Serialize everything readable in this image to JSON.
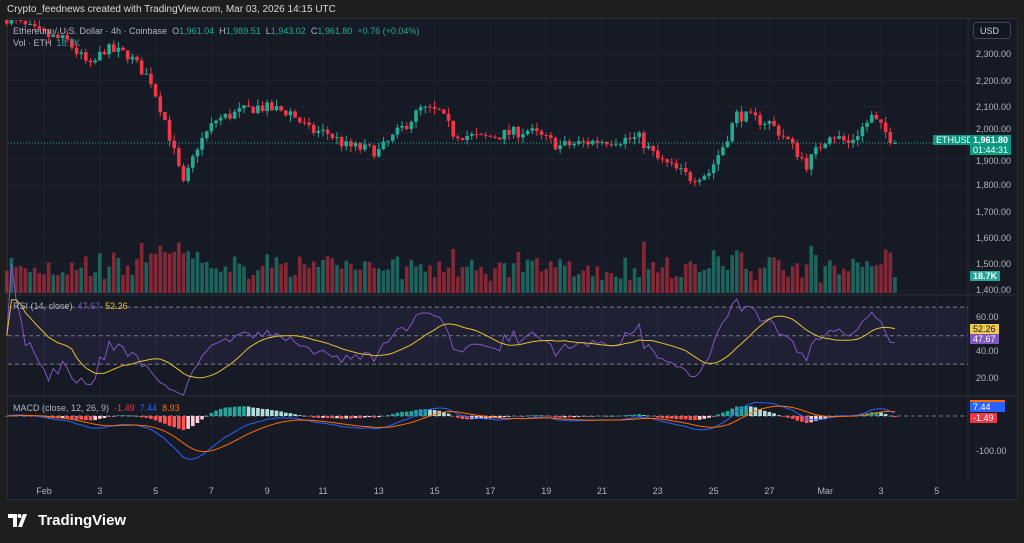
{
  "caption": "Crypto_feednews created with TradingView.com, Mar 03, 2026 14:15 UTC",
  "legend": {
    "symbol": "Ethereum / U.S. Dollar · 4h · Coinbase",
    "o_label": "O",
    "o": "1,961.04",
    "h_label": "H",
    "h": "1,989.51",
    "l_label": "L",
    "l": "1,943.02",
    "c_label": "C",
    "c": "1,961.80",
    "change": "+0.76 (+0.04%)",
    "vol_label": "Vol · ETH",
    "vol": "18.7K"
  },
  "currency_button": "USD",
  "price_axis": [
    "2,300.00",
    "2,200.00",
    "2,100.00",
    "2,000.00",
    "1,900.00",
    "1,800.00",
    "1,700.00",
    "1,600.00",
    "1,500.00",
    "1,400.00"
  ],
  "last_price": {
    "symbol": "ETHUSD",
    "price": "1,961.80",
    "countdown": "01:44:31",
    "volume": "18.7K"
  },
  "rsi": {
    "label": "RSI (14, close)",
    "value": "47.67",
    "ma": "52.26",
    "axis": [
      "60.00",
      "40.00",
      "20.00"
    ]
  },
  "macd": {
    "label": "MACD (close, 12, 26, 9)",
    "hist": "-1.49",
    "macd": "7.44",
    "signal": "8.93",
    "axis": [
      "-100.00"
    ]
  },
  "time_axis": [
    "Feb",
    "3",
    "5",
    "7",
    "9",
    "11",
    "13",
    "15",
    "17",
    "19",
    "21",
    "23",
    "25",
    "27",
    "Mar",
    "3",
    "5"
  ],
  "footer_brand": "TradingView",
  "colors": {
    "up": "#22ab94",
    "down": "#f23645",
    "rsi": "#7e57c2",
    "rsi_ma": "#e6c229",
    "macd": "#2962ff",
    "signal": "#ff6d00",
    "background": "#161a25"
  },
  "chart_data": {
    "type": "candlestick",
    "interval": "4h",
    "price_range": [
      1400,
      2400
    ],
    "close_path": [
      [
        "2026-01-30T16:00",
        2440
      ],
      [
        "2026-01-31T20:00",
        2380
      ],
      [
        "2026-02-01T20:00",
        2350
      ],
      [
        "2026-02-02T16:00",
        2250
      ],
      [
        "2026-02-03T04:00",
        2320
      ],
      [
        "2026-02-04T00:00",
        2300
      ],
      [
        "2026-02-04T20:00",
        2200
      ],
      [
        "2026-02-05T08:00",
        2050
      ],
      [
        "2026-02-06T00:00",
        1800
      ],
      [
        "2026-02-06T12:00",
        1950
      ],
      [
        "2026-02-07T04:00",
        2050
      ],
      [
        "2026-02-08T00:00",
        2080
      ],
      [
        "2026-02-08T16:00",
        2100
      ],
      [
        "2026-02-09T20:00",
        2080
      ],
      [
        "2026-02-10T12:00",
        2010
      ],
      [
        "2026-02-11T04:00",
        2000
      ],
      [
        "2026-02-11T20:00",
        1950
      ],
      [
        "2026-02-13T00:00",
        1930
      ],
      [
        "2026-02-13T16:00",
        2000
      ],
      [
        "2026-02-14T12:00",
        2090
      ],
      [
        "2026-02-15T04:00",
        2080
      ],
      [
        "2026-02-15T16:00",
        2000
      ],
      [
        "2026-02-16T16:00",
        1980
      ],
      [
        "2026-02-18T08:00",
        2010
      ],
      [
        "2026-02-19T12:00",
        1950
      ],
      [
        "2026-02-20T20:00",
        1970
      ],
      [
        "2026-02-22T08:00",
        1980
      ],
      [
        "2026-02-23T00:00",
        1900
      ],
      [
        "2026-02-24T04:00",
        1830
      ],
      [
        "2026-02-24T20:00",
        1850
      ],
      [
        "2026-02-25T08:00",
        1950
      ],
      [
        "2026-02-25T20:00",
        2070
      ],
      [
        "2026-02-27T00:00",
        2040
      ],
      [
        "2026-02-27T16:00",
        1970
      ],
      [
        "2026-02-28T08:00",
        1880
      ],
      [
        "2026-03-01T04:00",
        2000
      ],
      [
        "2026-03-01T20:00",
        1960
      ],
      [
        "2026-03-02T16:00",
        2060
      ],
      [
        "2026-03-03T12:00",
        1961.8
      ]
    ],
    "rsi_levels": [
      70,
      50,
      30
    ],
    "rsi_axis": [
      60,
      40,
      20
    ],
    "macd_axis": [
      -100
    ]
  }
}
